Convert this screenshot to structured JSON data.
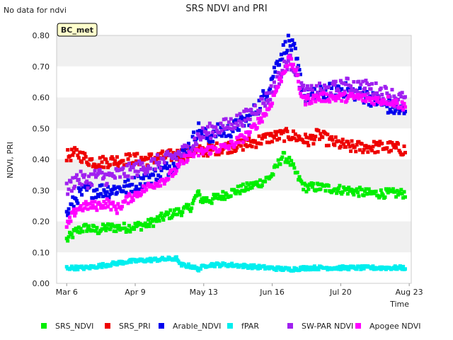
{
  "notice": "No data for ndvi",
  "site_label": "BC_met",
  "chart_data": {
    "type": "scatter",
    "title": "SRS NDVI and PRI",
    "xlabel": "Time",
    "ylabel": "NDVI, PRI",
    "ylim": [
      0.0,
      0.8
    ],
    "yticks": [
      "0.00",
      "0.10",
      "0.20",
      "0.30",
      "0.40",
      "0.50",
      "0.60",
      "0.70",
      "0.80"
    ],
    "xlim_day": [
      -5,
      171
    ],
    "xticks": [
      {
        "label": "Mar 6",
        "day": 0
      },
      {
        "label": "Apr 9",
        "day": 34
      },
      {
        "label": "May 13",
        "day": 68
      },
      {
        "label": "Jun 16",
        "day": 102
      },
      {
        "label": "Jul 20",
        "day": 136
      },
      {
        "label": "Aug 23",
        "day": 170
      }
    ],
    "grid": "alternating horizontal bands",
    "legend_position": "bottom",
    "series": [
      {
        "name": "SRS_NDVI",
        "color": "#00ee00",
        "spread": 0.015,
        "points": [
          [
            0,
            0.14
          ],
          [
            5,
            0.17
          ],
          [
            10,
            0.18
          ],
          [
            15,
            0.17
          ],
          [
            20,
            0.18
          ],
          [
            30,
            0.18
          ],
          [
            40,
            0.19
          ],
          [
            50,
            0.22
          ],
          [
            60,
            0.24
          ],
          [
            62,
            0.25
          ],
          [
            65,
            0.29
          ],
          [
            67,
            0.27
          ],
          [
            72,
            0.27
          ],
          [
            80,
            0.29
          ],
          [
            90,
            0.31
          ],
          [
            98,
            0.33
          ],
          [
            102,
            0.35
          ],
          [
            107,
            0.41
          ],
          [
            110,
            0.4
          ],
          [
            115,
            0.34
          ],
          [
            118,
            0.31
          ],
          [
            125,
            0.31
          ],
          [
            140,
            0.3
          ],
          [
            150,
            0.29
          ],
          [
            160,
            0.29
          ],
          [
            168,
            0.29
          ]
        ]
      },
      {
        "name": "SRS_PRI",
        "color": "#ee0000",
        "spread": 0.02,
        "points": [
          [
            0,
            0.41
          ],
          [
            5,
            0.42
          ],
          [
            10,
            0.4
          ],
          [
            15,
            0.39
          ],
          [
            30,
            0.4
          ],
          [
            40,
            0.4
          ],
          [
            50,
            0.41
          ],
          [
            60,
            0.42
          ],
          [
            70,
            0.43
          ],
          [
            80,
            0.44
          ],
          [
            90,
            0.45
          ],
          [
            100,
            0.47
          ],
          [
            110,
            0.48
          ],
          [
            115,
            0.47
          ],
          [
            120,
            0.46
          ],
          [
            125,
            0.48
          ],
          [
            130,
            0.46
          ],
          [
            140,
            0.44
          ],
          [
            150,
            0.44
          ],
          [
            160,
            0.44
          ],
          [
            168,
            0.43
          ]
        ]
      },
      {
        "name": "Arable_NDVI",
        "color": "#0000ee",
        "spread": 0.025,
        "points": [
          [
            0,
            0.22
          ],
          [
            5,
            0.28
          ],
          [
            10,
            0.3
          ],
          [
            20,
            0.3
          ],
          [
            30,
            0.31
          ],
          [
            40,
            0.34
          ],
          [
            50,
            0.37
          ],
          [
            55,
            0.4
          ],
          [
            62,
            0.45
          ],
          [
            65,
            0.5
          ],
          [
            70,
            0.47
          ],
          [
            75,
            0.49
          ],
          [
            80,
            0.49
          ],
          [
            85,
            0.51
          ],
          [
            90,
            0.53
          ],
          [
            95,
            0.57
          ],
          [
            100,
            0.63
          ],
          [
            105,
            0.72
          ],
          [
            110,
            0.78
          ],
          [
            113,
            0.75
          ],
          [
            116,
            0.66
          ],
          [
            118,
            0.6
          ],
          [
            125,
            0.61
          ],
          [
            135,
            0.63
          ],
          [
            140,
            0.62
          ],
          [
            150,
            0.6
          ],
          [
            160,
            0.57
          ],
          [
            168,
            0.55
          ]
        ]
      },
      {
        "name": "fPAR",
        "color": "#00eeee",
        "spread": 0.006,
        "points": [
          [
            0,
            0.05
          ],
          [
            10,
            0.05
          ],
          [
            20,
            0.06
          ],
          [
            30,
            0.07
          ],
          [
            40,
            0.075
          ],
          [
            55,
            0.08
          ],
          [
            56,
            0.06
          ],
          [
            62,
            0.055
          ],
          [
            65,
            0.045
          ],
          [
            70,
            0.06
          ],
          [
            80,
            0.06
          ],
          [
            90,
            0.055
          ],
          [
            100,
            0.05
          ],
          [
            110,
            0.045
          ],
          [
            120,
            0.05
          ],
          [
            140,
            0.05
          ],
          [
            160,
            0.05
          ],
          [
            168,
            0.05
          ]
        ]
      },
      {
        "name": "SW-PAR NDVI",
        "color": "#a020f0",
        "spread": 0.025,
        "points": [
          [
            0,
            0.3
          ],
          [
            5,
            0.34
          ],
          [
            10,
            0.33
          ],
          [
            15,
            0.35
          ],
          [
            20,
            0.34
          ],
          [
            30,
            0.36
          ],
          [
            40,
            0.38
          ],
          [
            50,
            0.4
          ],
          [
            60,
            0.43
          ],
          [
            65,
            0.47
          ],
          [
            70,
            0.49
          ],
          [
            80,
            0.51
          ],
          [
            90,
            0.54
          ],
          [
            100,
            0.6
          ],
          [
            105,
            0.66
          ],
          [
            110,
            0.72
          ],
          [
            113,
            0.7
          ],
          [
            118,
            0.61
          ],
          [
            125,
            0.62
          ],
          [
            135,
            0.63
          ],
          [
            140,
            0.64
          ],
          [
            150,
            0.63
          ],
          [
            160,
            0.61
          ],
          [
            168,
            0.59
          ]
        ]
      },
      {
        "name": "Apogee NDVI",
        "color": "#ff00ff",
        "spread": 0.015,
        "points": [
          [
            0,
            0.18
          ],
          [
            3,
            0.22
          ],
          [
            5,
            0.24
          ],
          [
            10,
            0.25
          ],
          [
            15,
            0.25
          ],
          [
            20,
            0.26
          ],
          [
            25,
            0.24
          ],
          [
            30,
            0.27
          ],
          [
            40,
            0.31
          ],
          [
            50,
            0.34
          ],
          [
            55,
            0.37
          ],
          [
            60,
            0.41
          ],
          [
            65,
            0.42
          ],
          [
            70,
            0.43
          ],
          [
            80,
            0.44
          ],
          [
            90,
            0.48
          ],
          [
            100,
            0.56
          ],
          [
            105,
            0.64
          ],
          [
            110,
            0.72
          ],
          [
            113,
            0.7
          ],
          [
            116,
            0.62
          ],
          [
            118,
            0.59
          ],
          [
            125,
            0.6
          ],
          [
            135,
            0.6
          ],
          [
            145,
            0.6
          ],
          [
            155,
            0.59
          ],
          [
            160,
            0.59
          ],
          [
            168,
            0.57
          ]
        ]
      }
    ]
  }
}
